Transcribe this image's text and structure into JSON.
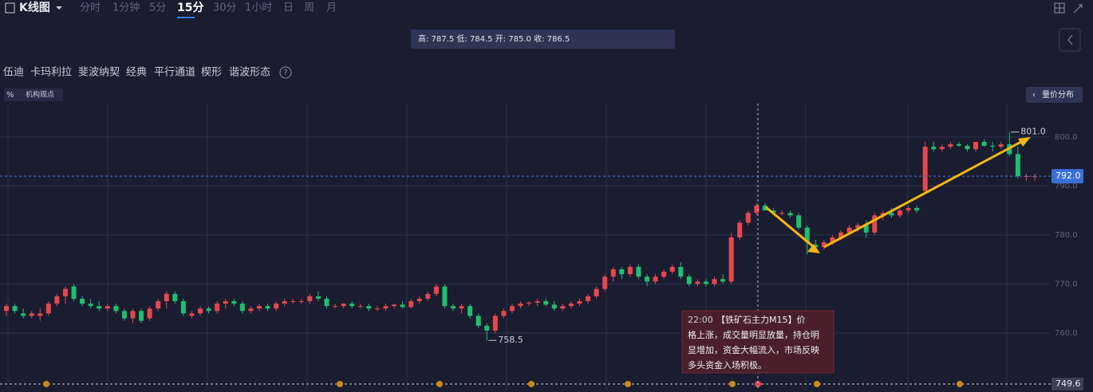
{
  "toolbar": {
    "title": "K线图",
    "tabs": [
      "分时",
      "1分钟",
      "5分",
      "15分",
      "30分",
      "1小时",
      "日",
      "周",
      "月"
    ],
    "active_tab": 3
  },
  "info_bar": "高: 787.5 低: 784.5 开: 785.0 收: 786.5",
  "tools": [
    "伍迪",
    "卡玛利拉",
    "斐波纳契",
    "经典",
    "平行通道",
    "楔形",
    "谐波形态"
  ],
  "badges": {
    "percent": "%",
    "views": "机构观点",
    "volume_profile": "量价分布"
  },
  "tooltip": {
    "time": "22:00",
    "text": "【铁矿石主力M15】价格上涨，成交量明显放量，持仓明显增加，资金大幅流入，市场反映多头资金入场积极。"
  },
  "chart_data": {
    "type": "candlestick",
    "up_color": "#e5484d",
    "down_color": "#1fbf6f",
    "ylim": [
      748.3,
      806.8
    ],
    "yticks": [
      {
        "value": 760,
        "label": "760.0"
      },
      {
        "value": 770,
        "label": "770.0"
      },
      {
        "value": 780,
        "label": "780.0"
      },
      {
        "value": 790,
        "label": "790.0"
      },
      {
        "value": 800,
        "label": "800.0"
      }
    ],
    "grid": true,
    "current_price": {
      "value": 792,
      "label": "792.0"
    },
    "reference_price": {
      "value": 749.6,
      "label": "749.6"
    },
    "high_marker": {
      "value": 801,
      "label": "801.0",
      "index": 119
    },
    "low_marker": {
      "value": 758.5,
      "label": "758.5",
      "index": 57
    },
    "candles": [
      [
        764.5,
        766,
        763.5,
        765.5
      ],
      [
        765.5,
        766,
        764,
        764.5
      ],
      [
        764,
        765,
        763,
        763.5
      ],
      [
        763.5,
        764.5,
        763,
        764
      ],
      [
        763.5,
        765,
        762.5,
        764
      ],
      [
        764,
        766.5,
        763.5,
        766
      ],
      [
        766,
        768,
        765.5,
        767.5
      ],
      [
        767.5,
        769.5,
        766,
        769
      ],
      [
        769.5,
        770,
        766.5,
        767
      ],
      [
        767,
        767.5,
        765.5,
        766
      ],
      [
        766,
        767,
        765,
        765.5
      ],
      [
        765.5,
        766.5,
        764.5,
        765
      ],
      [
        765,
        766,
        764.5,
        765.5
      ],
      [
        765.5,
        766,
        764,
        764.5
      ],
      [
        764.5,
        765,
        762.5,
        763
      ],
      [
        763,
        765,
        762,
        764.5
      ],
      [
        764.5,
        765,
        762,
        762.5
      ],
      [
        763,
        765.5,
        762.5,
        765
      ],
      [
        765,
        767,
        764.5,
        766.5
      ],
      [
        766.5,
        768.5,
        765,
        768
      ],
      [
        768,
        768.5,
        766,
        766.5
      ],
      [
        766.5,
        767,
        763.5,
        764
      ],
      [
        763.5,
        764.5,
        763,
        764
      ],
      [
        764,
        765.5,
        763.5,
        765
      ],
      [
        765,
        765.5,
        764,
        764.5
      ],
      [
        764.5,
        766.5,
        764,
        766
      ],
      [
        766,
        767,
        765,
        766.5
      ],
      [
        766.5,
        767,
        765.5,
        766
      ],
      [
        766,
        766.5,
        764,
        764.5
      ],
      [
        764.5,
        765.5,
        764,
        765
      ],
      [
        765,
        766,
        764.5,
        765.5
      ],
      [
        765.5,
        766,
        764.5,
        765
      ],
      [
        765,
        766.5,
        764.5,
        766
      ],
      [
        766,
        767,
        765.5,
        766.5
      ],
      [
        766.5,
        767,
        766,
        766.5
      ],
      [
        766.5,
        767,
        766,
        766.5
      ],
      [
        766.5,
        768,
        766,
        767.5
      ],
      [
        767.5,
        768.5,
        766.5,
        767
      ],
      [
        767,
        767.5,
        765,
        765.5
      ],
      [
        765.5,
        766,
        765,
        765.5
      ],
      [
        765.5,
        766,
        765,
        766
      ],
      [
        766,
        766.5,
        765,
        765.5
      ],
      [
        765.5,
        766,
        765,
        765.5
      ],
      [
        765.5,
        766,
        764.5,
        765
      ],
      [
        765,
        765.5,
        764.5,
        765
      ],
      [
        765,
        766,
        764.5,
        765.5
      ],
      [
        765.5,
        766,
        765,
        765.8
      ],
      [
        765.8,
        766.5,
        765,
        765.3
      ],
      [
        765.3,
        767,
        765,
        766.5
      ],
      [
        766.5,
        767.5,
        766,
        767
      ],
      [
        767,
        768.5,
        766.5,
        768
      ],
      [
        768,
        770,
        767.5,
        769.5
      ],
      [
        769.5,
        770,
        765,
        765.5
      ],
      [
        765.5,
        766,
        764.5,
        765
      ],
      [
        765,
        766,
        764,
        765.5
      ],
      [
        765.5,
        766,
        763,
        763.5
      ],
      [
        763.5,
        764,
        761,
        761.5
      ],
      [
        761.5,
        762,
        758.5,
        760.5
      ],
      [
        760.5,
        764,
        760,
        763.5
      ],
      [
        763.5,
        765,
        763,
        764.5
      ],
      [
        764.5,
        766,
        764,
        765.5
      ],
      [
        765.5,
        766.5,
        765,
        766
      ],
      [
        766,
        766.5,
        765.5,
        766.2
      ],
      [
        766.2,
        767,
        765.5,
        766.5
      ],
      [
        766.5,
        767,
        765.5,
        765.8
      ],
      [
        765.8,
        766.5,
        764.5,
        765
      ],
      [
        765,
        766,
        764.5,
        765.5
      ],
      [
        765.5,
        766.5,
        765,
        766
      ],
      [
        766,
        767,
        765.5,
        766.5
      ],
      [
        766.5,
        768,
        766,
        767.5
      ],
      [
        767.5,
        769.5,
        767,
        769
      ],
      [
        769,
        772,
        768.5,
        771.5
      ],
      [
        771.5,
        773.5,
        770.5,
        773
      ],
      [
        773,
        773.5,
        771,
        772
      ],
      [
        772,
        774,
        771.5,
        773.5
      ],
      [
        773.5,
        774,
        771,
        771.5
      ],
      [
        771.5,
        772,
        769.5,
        770.5
      ],
      [
        770.5,
        772,
        770,
        771.5
      ],
      [
        771.5,
        773,
        771,
        772.5
      ],
      [
        772.5,
        774,
        772,
        773.5
      ],
      [
        773.5,
        774.5,
        771,
        771.5
      ],
      [
        771.5,
        772,
        769.5,
        770
      ],
      [
        770,
        771,
        769.5,
        770.5
      ],
      [
        770.5,
        771,
        769.5,
        770
      ],
      [
        770,
        771.5,
        769.5,
        771
      ],
      [
        771,
        772,
        770,
        770.5
      ],
      [
        770.5,
        780.5,
        770,
        779.5
      ],
      [
        779.5,
        783,
        779,
        782.5
      ],
      [
        782.5,
        785,
        782,
        784.5
      ],
      [
        784.5,
        786.5,
        784,
        786
      ],
      [
        786,
        786.5,
        785,
        785
      ],
      [
        785,
        785.5,
        784.5,
        784.5
      ],
      [
        784.5,
        785,
        784,
        784.5
      ],
      [
        784.5,
        785,
        783.5,
        784
      ],
      [
        784,
        784.5,
        781,
        781.5
      ],
      [
        781.5,
        782,
        776,
        778.5
      ],
      [
        778,
        779,
        776.5,
        777.5
      ],
      [
        777.5,
        779,
        777,
        778.5
      ],
      [
        778.5,
        780,
        778,
        779.5
      ],
      [
        779.5,
        781,
        779,
        780.5
      ],
      [
        780.5,
        782,
        780,
        781.5
      ],
      [
        781.5,
        782.5,
        780.5,
        782
      ],
      [
        782,
        783,
        779.5,
        780.5
      ],
      [
        780.5,
        784.5,
        780,
        784
      ],
      [
        784,
        785,
        783,
        784.5
      ],
      [
        784.5,
        785.5,
        783.5,
        784
      ],
      [
        784,
        785.5,
        783.5,
        785
      ],
      [
        785,
        786,
        784.5,
        785.5
      ],
      [
        785.5,
        786,
        784.5,
        785
      ],
      [
        789,
        799,
        788.5,
        798
      ],
      [
        798,
        799,
        797,
        797.5
      ],
      [
        797.5,
        798.5,
        797,
        798
      ],
      [
        798,
        799,
        797.5,
        798.5
      ],
      [
        798.5,
        799,
        798,
        798.2
      ],
      [
        798.2,
        798.5,
        797,
        797.5
      ],
      [
        797.5,
        799,
        797,
        799
      ],
      [
        799,
        799.5,
        798,
        798.2
      ],
      [
        798.2,
        799,
        797,
        798
      ],
      [
        798,
        799,
        797.5,
        798.5
      ],
      [
        798.5,
        801,
        796,
        796.5
      ],
      [
        796.5,
        798,
        791.5,
        792
      ],
      [
        792,
        792.5,
        791,
        792
      ],
      [
        792,
        792.5,
        791,
        792
      ]
    ]
  }
}
